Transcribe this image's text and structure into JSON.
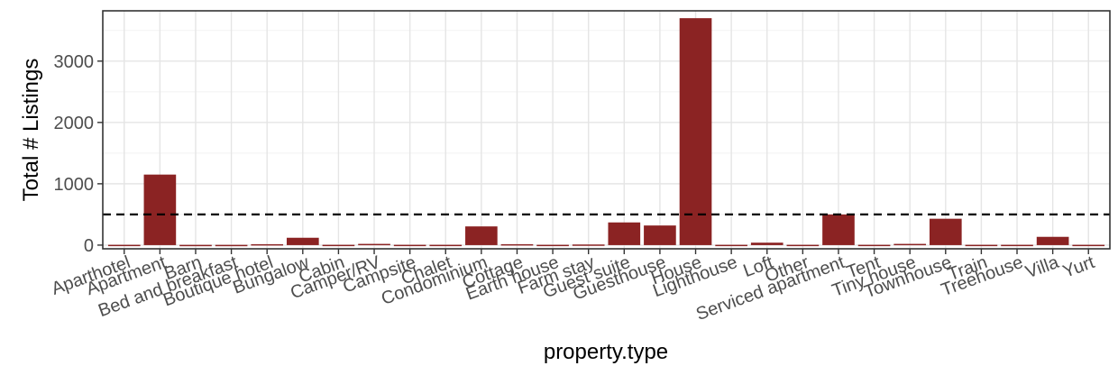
{
  "chart_data": {
    "type": "bar",
    "title": "",
    "xlabel": "property.type",
    "ylabel": "Total # Listings",
    "categories": [
      "Aparthotel",
      "Apartment",
      "Barn",
      "Bed and breakfast",
      "Boutique hotel",
      "Bungalow",
      "Cabin",
      "Camper/RV",
      "Campsite",
      "Chalet",
      "Condominium",
      "Cottage",
      "Earth house",
      "Farm stay",
      "Guest suite",
      "Guesthouse",
      "House",
      "Lighthouse",
      "Loft",
      "Other",
      "Serviced apartment",
      "Tent",
      "Tiny house",
      "Townhouse",
      "Train",
      "Treehouse",
      "Villa",
      "Yurt"
    ],
    "values": [
      5,
      1150,
      4,
      4,
      15,
      120,
      5,
      20,
      5,
      5,
      305,
      15,
      5,
      10,
      370,
      320,
      3700,
      5,
      40,
      5,
      500,
      5,
      20,
      430,
      5,
      5,
      135,
      5
    ],
    "ylim": [
      -60,
      3820
    ],
    "yticks": [
      0,
      1000,
      2000,
      3000
    ],
    "reference_line": 500,
    "bar_color": "#8b2323",
    "reference_line_color": "#000000",
    "grid": true,
    "theme": "bw"
  }
}
